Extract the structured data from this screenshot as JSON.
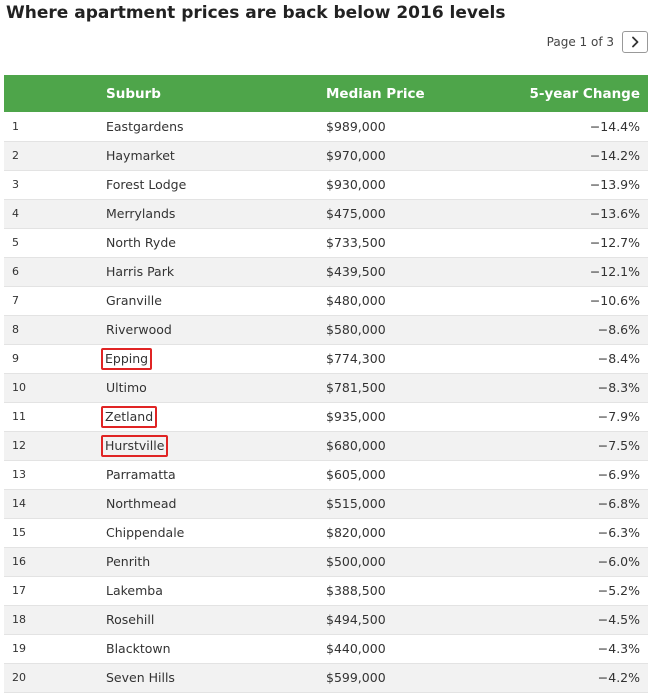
{
  "title": "Where apartment prices are back below 2016 levels",
  "pagination": {
    "label": "Page 1 of 3",
    "next_icon": "chevron-right-icon"
  },
  "colors": {
    "header_bg": "#4ea54a",
    "highlight_border": "#e02424",
    "row_alt_bg": "#f2f2f2"
  },
  "chart_data": {
    "type": "table",
    "columns": [
      "",
      "Suburb",
      "Median Price",
      "5-year Change"
    ],
    "rows": [
      {
        "rank": "1",
        "suburb": "Eastgardens",
        "price": "$989,000",
        "change": "−14.4%",
        "highlighted": false
      },
      {
        "rank": "2",
        "suburb": "Haymarket",
        "price": "$970,000",
        "change": "−14.2%",
        "highlighted": false
      },
      {
        "rank": "3",
        "suburb": "Forest Lodge",
        "price": "$930,000",
        "change": "−13.9%",
        "highlighted": false
      },
      {
        "rank": "4",
        "suburb": "Merrylands",
        "price": "$475,000",
        "change": "−13.6%",
        "highlighted": false
      },
      {
        "rank": "5",
        "suburb": "North Ryde",
        "price": "$733,500",
        "change": "−12.7%",
        "highlighted": false
      },
      {
        "rank": "6",
        "suburb": "Harris Park",
        "price": "$439,500",
        "change": "−12.1%",
        "highlighted": false
      },
      {
        "rank": "7",
        "suburb": "Granville",
        "price": "$480,000",
        "change": "−10.6%",
        "highlighted": false
      },
      {
        "rank": "8",
        "suburb": "Riverwood",
        "price": "$580,000",
        "change": "−8.6%",
        "highlighted": false
      },
      {
        "rank": "9",
        "suburb": "Epping",
        "price": "$774,300",
        "change": "−8.4%",
        "highlighted": true
      },
      {
        "rank": "10",
        "suburb": "Ultimo",
        "price": "$781,500",
        "change": "−8.3%",
        "highlighted": false
      },
      {
        "rank": "11",
        "suburb": "Zetland",
        "price": "$935,000",
        "change": "−7.9%",
        "highlighted": true
      },
      {
        "rank": "12",
        "suburb": "Hurstville",
        "price": "$680,000",
        "change": "−7.5%",
        "highlighted": true
      },
      {
        "rank": "13",
        "suburb": "Parramatta",
        "price": "$605,000",
        "change": "−6.9%",
        "highlighted": false
      },
      {
        "rank": "14",
        "suburb": "Northmead",
        "price": "$515,000",
        "change": "−6.8%",
        "highlighted": false
      },
      {
        "rank": "15",
        "suburb": "Chippendale",
        "price": "$820,000",
        "change": "−6.3%",
        "highlighted": false
      },
      {
        "rank": "16",
        "suburb": "Penrith",
        "price": "$500,000",
        "change": "−6.0%",
        "highlighted": false
      },
      {
        "rank": "17",
        "suburb": "Lakemba",
        "price": "$388,500",
        "change": "−5.2%",
        "highlighted": false
      },
      {
        "rank": "18",
        "suburb": "Rosehill",
        "price": "$494,500",
        "change": "−4.5%",
        "highlighted": false
      },
      {
        "rank": "19",
        "suburb": "Blacktown",
        "price": "$440,000",
        "change": "−4.3%",
        "highlighted": false
      },
      {
        "rank": "20",
        "suburb": "Seven Hills",
        "price": "$599,000",
        "change": "−4.2%",
        "highlighted": false
      }
    ]
  }
}
